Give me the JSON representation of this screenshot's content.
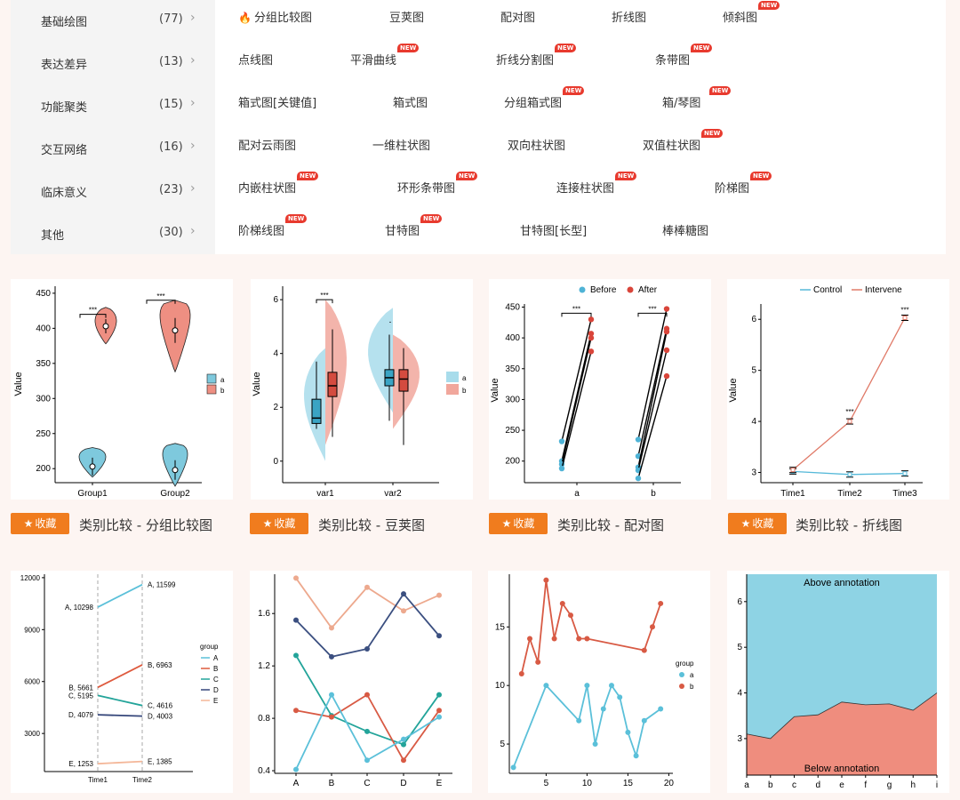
{
  "categories": [
    {
      "name": "基础绘图",
      "count": "(77)"
    },
    {
      "name": "表达差异",
      "count": "(13)"
    },
    {
      "name": "功能聚类",
      "count": "(15)"
    },
    {
      "name": "交互网络",
      "count": "(16)"
    },
    {
      "name": "临床意义",
      "count": "(23)"
    },
    {
      "name": "其他",
      "count": "(30)"
    }
  ],
  "subcharts": [
    [
      {
        "label": "分组比较图",
        "hot": true
      },
      {
        "label": "豆荚图"
      },
      {
        "label": "配对图"
      },
      {
        "label": "折线图"
      },
      {
        "label": "倾斜图",
        "is_new": true
      }
    ],
    [
      {
        "label": "点线图"
      },
      {
        "label": "平滑曲线",
        "is_new": true
      },
      {
        "label": "折线分割图",
        "is_new": true
      },
      {
        "label": "条带图",
        "is_new": true
      }
    ],
    [
      {
        "label": "箱式图[关键值]"
      },
      {
        "label": "箱式图"
      },
      {
        "label": "分组箱式图",
        "is_new": true
      },
      {
        "label": "箱/琴图",
        "is_new": true
      }
    ],
    [
      {
        "label": "配对云雨图"
      },
      {
        "label": "一维柱状图"
      },
      {
        "label": "双向柱状图"
      },
      {
        "label": "双值柱状图",
        "is_new": true
      }
    ],
    [
      {
        "label": "内嵌柱状图",
        "is_new": true
      },
      {
        "label": "环形条带图",
        "is_new": true
      },
      {
        "label": "连接柱状图",
        "is_new": true
      },
      {
        "label": "阶梯图",
        "is_new": true
      }
    ],
    [
      {
        "label": "阶梯线图",
        "is_new": true
      },
      {
        "label": "甘特图",
        "is_new": true
      },
      {
        "label": "甘特图[长型]"
      },
      {
        "label": "棒棒糖图"
      }
    ]
  ],
  "new_badge": "NEW",
  "fav_label": "收藏",
  "cards": [
    {
      "title": "类别比较 - 分组比较图"
    },
    {
      "title": "类别比较 - 豆荚图"
    },
    {
      "title": "类别比较 - 配对图"
    },
    {
      "title": "类别比较 - 折线图"
    }
  ],
  "chart_data": [
    {
      "type": "violin",
      "ylabel": "Value",
      "categories": [
        "Group1",
        "Group2"
      ],
      "ylim": [
        180,
        460
      ],
      "yticks": [
        200,
        250,
        300,
        350,
        400,
        450
      ],
      "legend": [
        "a",
        "b"
      ],
      "series": [
        {
          "name": "a",
          "medians": [
            203,
            198
          ]
        },
        {
          "name": "b",
          "medians": [
            403,
            397
          ]
        }
      ],
      "annotations": [
        "***",
        "***"
      ],
      "colors": {
        "a": "#7ec9dd",
        "b": "#ee8f82"
      }
    },
    {
      "type": "split-violin-box",
      "ylabel": "Value",
      "categories": [
        "var1",
        "var2"
      ],
      "ylim": [
        -0.8,
        6.5
      ],
      "yticks": [
        0,
        2,
        4,
        6
      ],
      "legend": [
        "a",
        "b"
      ],
      "series": [
        {
          "name": "a",
          "medians": [
            1.6,
            3.1
          ]
        },
        {
          "name": "b",
          "medians": [
            2.8,
            3.05
          ]
        }
      ],
      "annotations": [
        "***",
        "-"
      ]
    },
    {
      "type": "paired-dot",
      "ylabel": "Value",
      "categories": [
        "a",
        "b"
      ],
      "ylim": [
        165,
        455
      ],
      "yticks": [
        200,
        250,
        300,
        350,
        400,
        450
      ],
      "legend": [
        "Before",
        "After"
      ],
      "pairs": [
        [
          [
            232,
            430
          ],
          [
            200,
            407
          ],
          [
            195,
            400
          ],
          [
            188,
            378
          ]
        ],
        [
          [
            235,
            447
          ],
          [
            208,
            415
          ],
          [
            190,
            410
          ],
          [
            185,
            380
          ],
          [
            172,
            338
          ]
        ]
      ],
      "annotations": [
        "***",
        "***"
      ],
      "colors": {
        "Before": "#4fb3d6",
        "After": "#d9453a"
      }
    },
    {
      "type": "line",
      "ylabel": "Value",
      "categories": [
        "Time1",
        "Time2",
        "Time3"
      ],
      "ylim": [
        2.8,
        6.3
      ],
      "yticks": [
        3,
        4,
        5,
        6
      ],
      "legend": [
        "Control",
        "Intervene"
      ],
      "series": [
        {
          "name": "Control",
          "values": [
            3.02,
            2.96,
            2.98
          ]
        },
        {
          "name": "Intervene",
          "values": [
            3.05,
            4.0,
            6.03
          ]
        }
      ],
      "annotations": [
        "***",
        "***"
      ],
      "colors": {
        "Control": "#56b9d9",
        "Intervene": "#e07a68"
      }
    },
    {
      "type": "slope",
      "categories": [
        "Time1",
        "Time2"
      ],
      "ylim": [
        800,
        12200
      ],
      "yticks": [
        3000,
        6000,
        9000,
        12000
      ],
      "legend_title": "group",
      "series": [
        {
          "name": "A",
          "values": [
            10298,
            11599
          ],
          "left": "A, 10298",
          "right": "A, 11599"
        },
        {
          "name": "B",
          "values": [
            5661,
            6963
          ],
          "left": "B, 5661",
          "right": "B, 6963"
        },
        {
          "name": "C",
          "values": [
            5195,
            4616
          ],
          "left": "C, 5195",
          "right": "C, 4616"
        },
        {
          "name": "D",
          "values": [
            4079,
            4003
          ],
          "left": "D, 4079",
          "right": "D, 4003"
        },
        {
          "name": "E",
          "values": [
            1253,
            1385
          ],
          "left": "E, 1253",
          "right": "E, 1385"
        }
      ],
      "colors": {
        "A": "#5bc0d9",
        "B": "#de5a3e",
        "C": "#23a49a",
        "D": "#35467a",
        "E": "#f4b799"
      }
    },
    {
      "type": "line",
      "categories": [
        "A",
        "B",
        "C",
        "D",
        "E"
      ],
      "ylim": [
        0.38,
        1.9
      ],
      "yticks": [
        0.4,
        0.8,
        1.2,
        1.6
      ],
      "series": [
        {
          "values": [
            1.87,
            1.49,
            1.8,
            1.62,
            1.74
          ],
          "color": "#eda98e"
        },
        {
          "values": [
            1.55,
            1.27,
            1.33,
            1.75,
            1.43
          ],
          "color": "#3b4f80"
        },
        {
          "values": [
            1.28,
            0.82,
            0.7,
            0.6,
            0.98
          ],
          "color": "#23a49a"
        },
        {
          "values": [
            0.86,
            0.81,
            0.98,
            0.48,
            0.86
          ],
          "color": "#d85a44"
        },
        {
          "values": [
            0.41,
            0.98,
            0.48,
            0.64,
            0.81
          ],
          "color": "#5bc0d9"
        }
      ]
    },
    {
      "type": "line",
      "xlim": [
        0.5,
        20.5
      ],
      "xticks": [
        5,
        10,
        15,
        20
      ],
      "ylim": [
        2.5,
        19.5
      ],
      "yticks": [
        5,
        10,
        15
      ],
      "legend_title": "group",
      "legend": [
        "a",
        "b"
      ],
      "series": [
        {
          "name": "a",
          "x": [
            1,
            5,
            9,
            10,
            11,
            12,
            13,
            14,
            15,
            16,
            17,
            19
          ],
          "values": [
            3,
            10,
            7,
            10,
            5,
            8,
            10,
            9,
            6,
            4,
            7,
            8
          ],
          "color": "#5bc0d9"
        },
        {
          "name": "b",
          "x": [
            2,
            3,
            4,
            5,
            6,
            7,
            8,
            9,
            10,
            17,
            18,
            19
          ],
          "values": [
            11,
            14,
            12,
            19,
            14,
            17,
            16,
            14,
            14,
            13,
            15,
            17
          ],
          "color": "#d85a44"
        }
      ]
    },
    {
      "type": "area",
      "categories": [
        "a",
        "b",
        "c",
        "d",
        "e",
        "f",
        "g",
        "h",
        "i"
      ],
      "ylim": [
        2.2,
        6.6
      ],
      "yticks": [
        3,
        4,
        5,
        6
      ],
      "values": [
        3.1,
        3.0,
        3.48,
        3.52,
        3.8,
        3.74,
        3.76,
        3.62,
        4.0
      ],
      "annotations": [
        "Above annotation",
        "Below annotation"
      ],
      "colors": {
        "above": "#8ed3e4",
        "below": "#ef8d7e"
      }
    }
  ]
}
